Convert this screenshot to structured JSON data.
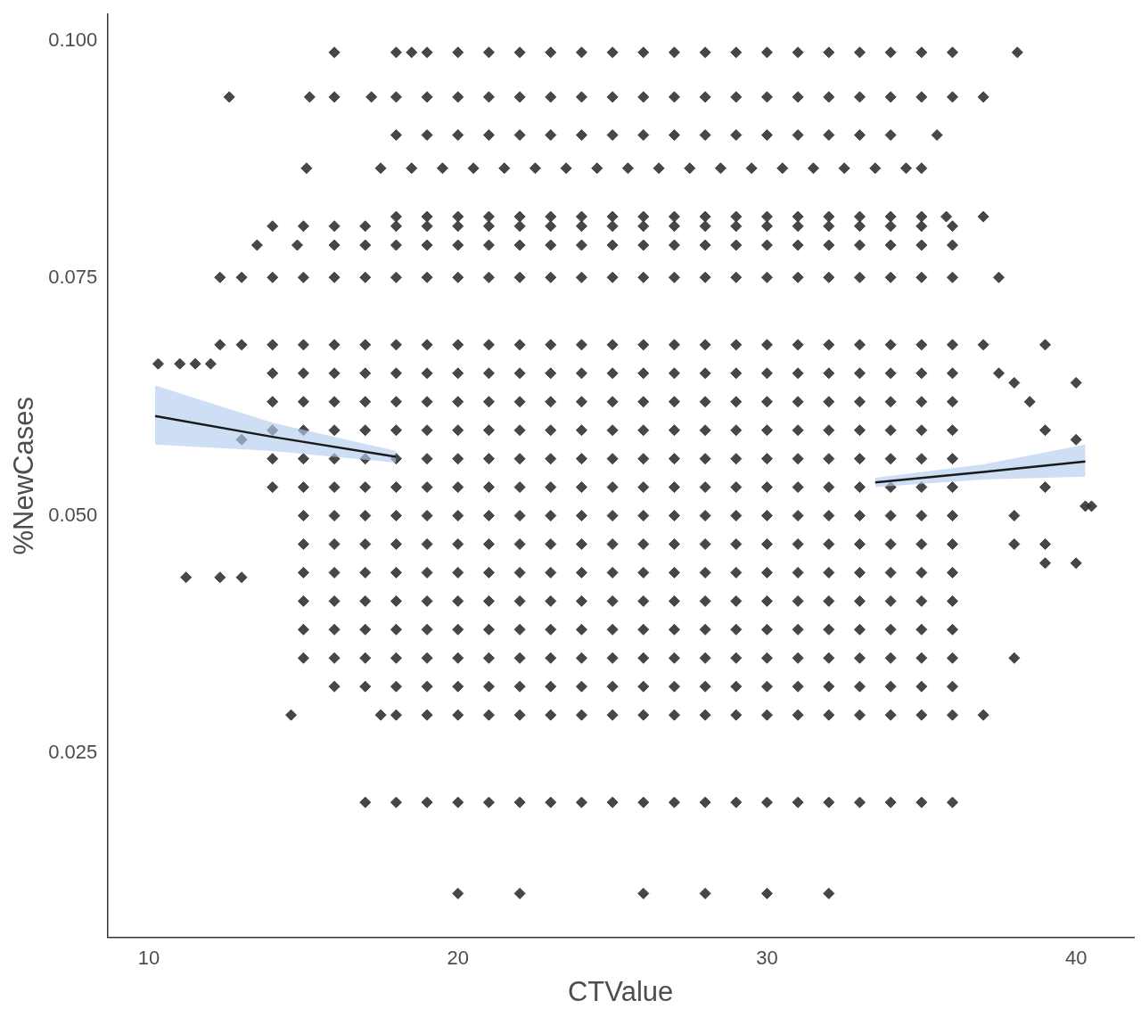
{
  "chart_data": {
    "type": "scatter",
    "x_label": "CTValue",
    "y_label": "%NewCases",
    "xlim": [
      8.65,
      41.87
    ],
    "ylim": [
      0.0056,
      0.1028
    ],
    "xticks": [
      10,
      20,
      30,
      40
    ],
    "yticks": [
      {
        "value": 0.025,
        "label": "0.025"
      },
      {
        "value": 0.05,
        "label": "0.050"
      },
      {
        "value": 0.075,
        "label": "0.075"
      },
      {
        "value": 0.1,
        "label": "0.100"
      }
    ],
    "grid": false,
    "series": [
      {
        "type": "scatter",
        "color": "#333333",
        "marker": "diamond",
        "rows": [
          {
            "y": 0.0988,
            "x": [
              16,
              18,
              18.5,
              19,
              20,
              21,
              22,
              23,
              24,
              25,
              26,
              27,
              28,
              29,
              30,
              31,
              32,
              33,
              34,
              35,
              36,
              38.1
            ]
          },
          {
            "y": 0.0941,
            "x": [
              12.6,
              15.2,
              16,
              17.2,
              18,
              19,
              20,
              21,
              22,
              23,
              24,
              25,
              26,
              27,
              28,
              29,
              30,
              31,
              32,
              33,
              34,
              35,
              36,
              37
            ]
          },
          {
            "y": 0.0901,
            "x": [
              18,
              19,
              20,
              21,
              22,
              23,
              24,
              25,
              26,
              27,
              28,
              29,
              30,
              31,
              32,
              33,
              34,
              35.5
            ]
          },
          {
            "y": 0.0866,
            "x": [
              15.1,
              17.5,
              18.5,
              19.5,
              20.5,
              21.5,
              22.5,
              23.5,
              24.5,
              25.5,
              26.5,
              27.5,
              28.5,
              29.5,
              30.5,
              31.5,
              32.5,
              33.5,
              34.5,
              35
            ]
          },
          {
            "y": 0.0815,
            "x": [
              18,
              19,
              20,
              21,
              22,
              23,
              24,
              25,
              26,
              27,
              28,
              29,
              30,
              31,
              32,
              33,
              34,
              35,
              35.8,
              37
            ]
          },
          {
            "y": 0.0805,
            "x": [
              14,
              15,
              16,
              17,
              18,
              19,
              20,
              21,
              22,
              23,
              24,
              25,
              26,
              27,
              28,
              29,
              30,
              31,
              32,
              33,
              34,
              35,
              36
            ]
          },
          {
            "y": 0.0785,
            "x": [
              13.5,
              14.8,
              16,
              17,
              18,
              19,
              20,
              21,
              22,
              23,
              24,
              25,
              26,
              27,
              28,
              29,
              30,
              31,
              32,
              33,
              34,
              35,
              36
            ]
          },
          {
            "y": 0.0751,
            "x": [
              12.3,
              13,
              14,
              15,
              16,
              17,
              18,
              19,
              20,
              21,
              22,
              23,
              24,
              25,
              26,
              27,
              28,
              29,
              30,
              31,
              32,
              33,
              34,
              35,
              36,
              37.5
            ]
          },
          {
            "y": 0.068,
            "x": [
              12.3,
              13,
              14,
              15,
              16,
              17,
              18,
              19,
              20,
              21,
              22,
              23,
              24,
              25,
              26,
              27,
              28,
              29,
              30,
              31,
              32,
              33,
              34,
              35,
              36,
              37,
              39
            ]
          },
          {
            "y": 0.065,
            "x": [
              14,
              15,
              16,
              17,
              18,
              19,
              20,
              21,
              22,
              23,
              24,
              25,
              26,
              27,
              28,
              29,
              30,
              31,
              32,
              33,
              34,
              35,
              36,
              37.5
            ]
          },
          {
            "y": 0.062,
            "x": [
              14,
              15,
              16,
              17,
              18,
              19,
              20,
              21,
              22,
              23,
              24,
              25,
              26,
              27,
              28,
              29,
              30,
              31,
              32,
              33,
              34,
              35,
              36,
              38.5
            ]
          },
          {
            "y": 0.059,
            "x": [
              14,
              15,
              16,
              17,
              18,
              19,
              20,
              21,
              22,
              23,
              24,
              25,
              26,
              27,
              28,
              29,
              30,
              31,
              32,
              33,
              34,
              35,
              36,
              39
            ]
          },
          {
            "y": 0.056,
            "x": [
              14,
              15,
              16,
              17,
              18,
              19,
              20,
              21,
              22,
              23,
              24,
              25,
              26,
              27,
              28,
              29,
              30,
              31,
              32,
              33,
              34,
              35,
              36
            ]
          },
          {
            "y": 0.053,
            "x": [
              14,
              15,
              16,
              17,
              18,
              19,
              20,
              21,
              22,
              23,
              24,
              25,
              26,
              27,
              28,
              29,
              30,
              31,
              32,
              33,
              34,
              35,
              36,
              39
            ]
          },
          {
            "y": 0.05,
            "x": [
              15,
              16,
              17,
              18,
              19,
              20,
              21,
              22,
              23,
              24,
              25,
              26,
              27,
              28,
              29,
              30,
              31,
              32,
              33,
              34,
              35,
              36,
              38
            ]
          },
          {
            "y": 0.047,
            "x": [
              15,
              16,
              17,
              18,
              19,
              20,
              21,
              22,
              23,
              24,
              25,
              26,
              27,
              28,
              29,
              30,
              31,
              32,
              33,
              34,
              35,
              36,
              38,
              39
            ]
          },
          {
            "y": 0.044,
            "x": [
              15,
              16,
              17,
              18,
              19,
              20,
              21,
              22,
              23,
              24,
              25,
              26,
              27,
              28,
              29,
              30,
              31,
              32,
              33,
              34,
              35,
              36
            ]
          },
          {
            "y": 0.041,
            "x": [
              15,
              16,
              17,
              18,
              19,
              20,
              21,
              22,
              23,
              24,
              25,
              26,
              27,
              28,
              29,
              30,
              31,
              32,
              33,
              34,
              35,
              36
            ]
          },
          {
            "y": 0.038,
            "x": [
              15,
              16,
              17,
              18,
              19,
              20,
              21,
              22,
              23,
              24,
              25,
              26,
              27,
              28,
              29,
              30,
              31,
              32,
              33,
              34,
              35,
              36
            ]
          },
          {
            "y": 0.035,
            "x": [
              15,
              16,
              17,
              18,
              19,
              20,
              21,
              22,
              23,
              24,
              25,
              26,
              27,
              28,
              29,
              30,
              31,
              32,
              33,
              34,
              35,
              36,
              38
            ]
          },
          {
            "y": 0.032,
            "x": [
              16,
              17,
              18,
              19,
              20,
              21,
              22,
              23,
              24,
              25,
              26,
              27,
              28,
              29,
              30,
              31,
              32,
              33,
              34,
              35,
              36
            ]
          },
          {
            "y": 0.029,
            "x": [
              14.6,
              17.5,
              18,
              19,
              20,
              21,
              22,
              23,
              24,
              25,
              26,
              27,
              28,
              29,
              30,
              31,
              32,
              33,
              34,
              35,
              36,
              37
            ]
          },
          {
            "y": 0.0198,
            "x": [
              17,
              18,
              19,
              20,
              21,
              22,
              23,
              24,
              25,
              26,
              27,
              28,
              29,
              30,
              31,
              32,
              33,
              34,
              35,
              36
            ]
          },
          {
            "y": 0.0102,
            "x": [
              20,
              22,
              26,
              28,
              30,
              32
            ]
          },
          {
            "y": 0.066,
            "x": [
              10.3,
              11,
              11.5,
              12
            ]
          },
          {
            "y": 0.0435,
            "x": [
              11.2,
              12.3,
              13
            ]
          },
          {
            "y": 0.064,
            "x": [
              38,
              40
            ]
          },
          {
            "y": 0.058,
            "x": [
              13,
              40
            ]
          },
          {
            "y": 0.051,
            "x": [
              40.3,
              40.5
            ]
          },
          {
            "y": 0.045,
            "x": [
              39,
              40
            ]
          }
        ]
      },
      {
        "type": "line",
        "color": "#1a1a1a",
        "x": [
          10.2,
          14,
          18
        ],
        "values": [
          0.0605,
          0.0583,
          0.0562
        ],
        "lower": [
          0.0575,
          0.0568,
          0.0556
        ],
        "upper": [
          0.0637,
          0.0598,
          0.0568
        ]
      },
      {
        "type": "line",
        "color": "#1a1a1a",
        "x": [
          33.5,
          37,
          40.3
        ],
        "values": [
          0.0535,
          0.0546,
          0.0557
        ],
        "lower": [
          0.053,
          0.0538,
          0.0541
        ],
        "upper": [
          0.054,
          0.0554,
          0.0575
        ]
      }
    ]
  }
}
